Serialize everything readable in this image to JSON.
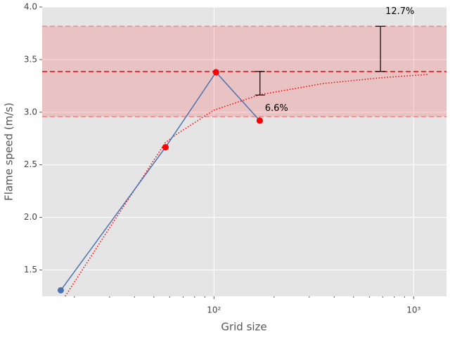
{
  "chart_data": {
    "type": "line",
    "xlabel": "Grid size",
    "ylabel": "Flame speed (m/s)",
    "xscale": "log",
    "xlim": [
      13.8,
      1460
    ],
    "ylim": [
      1.25,
      4.0
    ],
    "xticks": [
      {
        "value": 100,
        "label": "10²"
      },
      {
        "value": 1000,
        "label": "10³"
      }
    ],
    "xminorticks": [
      20,
      30,
      40,
      50,
      60,
      70,
      80,
      90,
      200,
      300,
      400,
      500,
      600,
      700,
      800,
      900
    ],
    "yticks": [
      1.5,
      {
        "value": 2,
        "label": "2.0"
      },
      2.5,
      {
        "value": 3,
        "label": "3.0"
      },
      3.5,
      {
        "value": 4,
        "label": "4.0"
      }
    ],
    "grid": true,
    "series": [
      {
        "color": "#4c72b0",
        "line": "solid",
        "marker": true,
        "x": [
          17.1,
          57.2,
          102.4,
          169.5
        ],
        "values": [
          1.307,
          2.667,
          3.38,
          2.92
        ]
      },
      {
        "color": "#ff0000",
        "line": "none",
        "marker": true,
        "x": [
          57.2,
          102.4,
          169.5
        ],
        "values": [
          2.667,
          3.38,
          2.92
        ]
      },
      {
        "color": "#ff0000",
        "line": "dotted",
        "marker": false,
        "x": [
          18,
          30,
          45,
          57,
          65,
          100,
          170,
          354,
          682,
          1195
        ],
        "values": [
          1.25,
          1.9,
          2.41,
          2.71,
          2.79,
          3.02,
          3.167,
          3.273,
          3.327,
          3.36
        ]
      }
    ],
    "hline": {
      "value": 3.387,
      "color": "#ff0000"
    },
    "band": {
      "low": 2.957,
      "high": 3.817,
      "color": "#ff0000"
    },
    "error_bars": [
      {
        "x": 170,
        "low": 3.163,
        "high": 3.387,
        "label": "6.6%"
      },
      {
        "x": 682,
        "low": 3.387,
        "high": 3.817,
        "label": "12.7%"
      }
    ]
  }
}
